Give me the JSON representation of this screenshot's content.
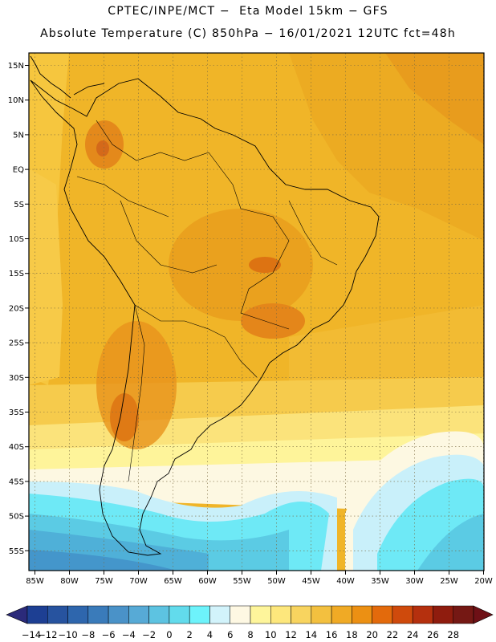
{
  "header": {
    "title": "CPTEC/INPE/MCT −  Eta Model 15km − GFS",
    "subtitle": "Absolute Temperature (C) 850hPa − 16/01/2021 12UTC fct=48h"
  },
  "map": {
    "lon_labels": [
      "85W",
      "80W",
      "75W",
      "70W",
      "65W",
      "60W",
      "55W",
      "50W",
      "45W",
      "40W",
      "35W",
      "30W",
      "25W",
      "20W"
    ],
    "lat_labels": [
      "15N",
      "10N",
      "5N",
      "EQ",
      "5S",
      "10S",
      "15S",
      "20S",
      "25S",
      "30S",
      "35S",
      "40S",
      "45S",
      "50S",
      "55S"
    ],
    "grid": "dotted"
  },
  "colorbar": {
    "labels": [
      "-14",
      "-12",
      "-10",
      "-8",
      "-6",
      "-4",
      "-2",
      "0",
      "2",
      "4",
      "6",
      "8",
      "10",
      "12",
      "14",
      "16",
      "18",
      "20",
      "22",
      "24",
      "26",
      "28"
    ],
    "colors": [
      "#1d3f93",
      "#27539f",
      "#2e66ad",
      "#3a7bba",
      "#4a92c8",
      "#57aad6",
      "#5dc3e1",
      "#62dbec",
      "#6df3fb",
      "#d2f3fb",
      "#fef8e3",
      "#fef59b",
      "#fde77c",
      "#f8d45f",
      "#f3c03f",
      "#f0aa25",
      "#ec9013",
      "#e36a0c",
      "#cf4a0c",
      "#b5300e",
      "#8f1c0e",
      "#751814"
    ],
    "under_color": "#2b2a7a",
    "over_color": "#6e1016"
  }
}
